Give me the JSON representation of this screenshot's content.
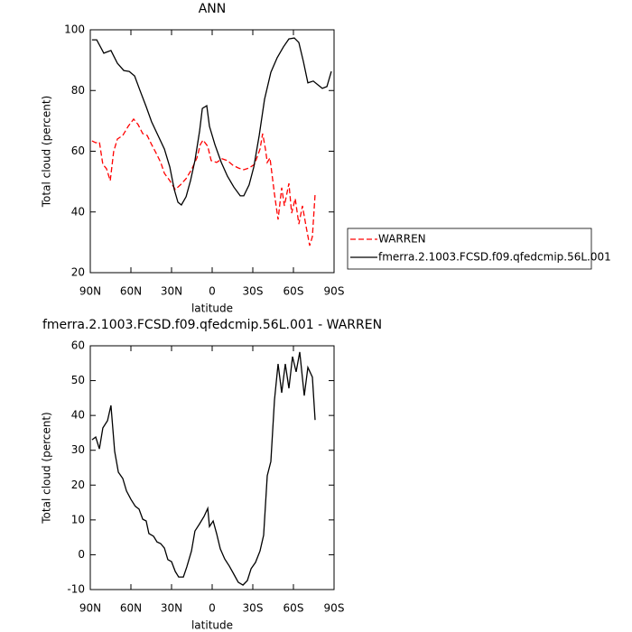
{
  "chart_data": [
    {
      "type": "line",
      "title": "ANN",
      "xlabel": "latitude",
      "ylabel": "Total cloud (percent)",
      "xlim": [
        90,
        -90
      ],
      "ylim": [
        20,
        100
      ],
      "xticks": [
        {
          "value": 90,
          "label": "90N"
        },
        {
          "value": 60,
          "label": "60N"
        },
        {
          "value": 30,
          "label": "30N"
        },
        0,
        {
          "value": -30,
          "label": "30S"
        },
        {
          "value": -60,
          "label": "60S"
        },
        {
          "value": -90,
          "label": "90S"
        }
      ],
      "yticks": [
        20,
        40,
        60,
        80,
        100
      ],
      "legend": "right",
      "series": [
        {
          "name": "WARREN",
          "color": "#ff0000",
          "dashed": true,
          "x": [
            88.7,
            86,
            83.3,
            80.7,
            78,
            75.3,
            72.7,
            70,
            66,
            62,
            58,
            54.7,
            51.3,
            48,
            44.7,
            41.3,
            38,
            35.3,
            31.3,
            27.3,
            23.3,
            19.3,
            15.3,
            11.3,
            8.7,
            6.7,
            3.3,
            0.7,
            -3.3,
            -7.3,
            -11.3,
            -15.3,
            -19.3,
            -23.3,
            -27.3,
            -31.3,
            -35.3,
            -37.3,
            -39.3,
            -40.7,
            -42.7,
            -46,
            -48.7,
            -51.3,
            -53.3,
            -56.7,
            -58.7,
            -61.3,
            -64,
            -66.7,
            -69.3,
            -72,
            -74,
            -76
          ],
          "values": [
            63.4,
            62.8,
            63,
            55.7,
            54.2,
            50.3,
            59.9,
            64,
            65.2,
            68.2,
            70.6,
            68.8,
            65.8,
            65.2,
            62.2,
            59.3,
            56.3,
            52.7,
            50.3,
            47.4,
            49,
            51,
            53.9,
            57.8,
            62.2,
            63.7,
            61.6,
            56.9,
            56.3,
            57.5,
            56.9,
            55.4,
            54.5,
            53.9,
            54.5,
            55.7,
            60.7,
            65.8,
            60.7,
            56.3,
            57.8,
            45.9,
            37.5,
            48,
            42,
            49.4,
            39.6,
            44.4,
            36,
            42,
            35.4,
            28.9,
            31.9,
            45.9
          ]
        },
        {
          "name": "fmerra.2.1003.FCSD.f09.qfedcmip.56L.001",
          "color": "#000000",
          "dashed": false,
          "x": [
            88.7,
            85.3,
            80,
            74.7,
            70,
            65.3,
            61.3,
            57.3,
            53.3,
            48.7,
            44.7,
            40,
            35.3,
            31.3,
            28,
            25.3,
            22.7,
            19.3,
            16,
            12.7,
            9.3,
            7.3,
            4,
            2,
            -2,
            -6.7,
            -11.3,
            -16,
            -20.7,
            -23.3,
            -27.3,
            -30.7,
            -34.7,
            -38.7,
            -43.3,
            -48,
            -52.7,
            -56.7,
            -60.7,
            -64,
            -67.3,
            -70.7,
            -74.7,
            -78,
            -81.3,
            -84.7,
            -88
          ],
          "values": [
            96.7,
            96.7,
            92.3,
            93.2,
            89,
            86.6,
            86.3,
            84.8,
            80,
            74.7,
            69.7,
            65.2,
            60.7,
            54.8,
            47.4,
            43.2,
            42.3,
            45,
            50.3,
            56.9,
            66.7,
            74.1,
            75,
            68.2,
            62.2,
            56.3,
            51.8,
            48.2,
            45.3,
            45.3,
            48.9,
            54.8,
            65.2,
            77.1,
            86,
            90.8,
            94.4,
            97,
            97.3,
            95.8,
            89.6,
            82.5,
            83.1,
            81.9,
            80.7,
            81.3,
            86.3
          ]
        }
      ]
    },
    {
      "type": "line",
      "title": "fmerra.2.1003.FCSD.f09.qfedcmip.56L.001 - WARREN",
      "xlabel": "latitude",
      "ylabel": "Total cloud (percent)",
      "xlim": [
        90,
        -90
      ],
      "ylim": [
        -10,
        60
      ],
      "xticks": [
        {
          "value": 90,
          "label": "90N"
        },
        {
          "value": 60,
          "label": "60N"
        },
        {
          "value": 30,
          "label": "30N"
        },
        0,
        {
          "value": -30,
          "label": "30S"
        },
        {
          "value": -60,
          "label": "60S"
        },
        {
          "value": -90,
          "label": "90S"
        }
      ],
      "yticks": [
        -10,
        0,
        10,
        20,
        30,
        40,
        50,
        60
      ],
      "series": [
        {
          "color": "#000000",
          "dashed": false,
          "x": [
            88.7,
            86,
            83.3,
            80.7,
            77.3,
            74.7,
            72,
            69.3,
            66,
            63.3,
            60,
            56.7,
            54,
            51.3,
            48.7,
            46.7,
            43.3,
            40.7,
            38,
            35.3,
            32.7,
            30,
            27.3,
            24.7,
            21.3,
            18.7,
            15.3,
            12.7,
            9.3,
            6,
            3.3,
            2,
            -0.7,
            -3.3,
            -6,
            -9.3,
            -12.7,
            -16,
            -19.3,
            -22.7,
            -26,
            -28.7,
            -32,
            -35.3,
            -38,
            -40.7,
            -43.3,
            -46,
            -48.7,
            -51.3,
            -54,
            -56.7,
            -59.3,
            -62,
            -64.7,
            -68,
            -70.7,
            -74,
            -76
          ],
          "values": [
            33,
            33.8,
            30.4,
            36.4,
            38.5,
            42.9,
            29.7,
            23.7,
            21.9,
            18.3,
            15.9,
            13.9,
            13.1,
            10.2,
            9.7,
            6.1,
            5.3,
            3.7,
            3.2,
            1.9,
            -1.4,
            -2,
            -4.8,
            -6.4,
            -6.4,
            -3.5,
            1.1,
            6.8,
            8.9,
            11,
            13.3,
            8.1,
            9.7,
            6.1,
            1.7,
            -1.2,
            -3.3,
            -5.6,
            -7.9,
            -8.7,
            -7.4,
            -4,
            -2.2,
            1.1,
            5.6,
            22.7,
            26.8,
            44.4,
            54.8,
            46.5,
            54.8,
            47.8,
            56.9,
            52.5,
            58.2,
            45.7,
            53.8,
            51,
            38.7
          ]
        }
      ]
    }
  ]
}
